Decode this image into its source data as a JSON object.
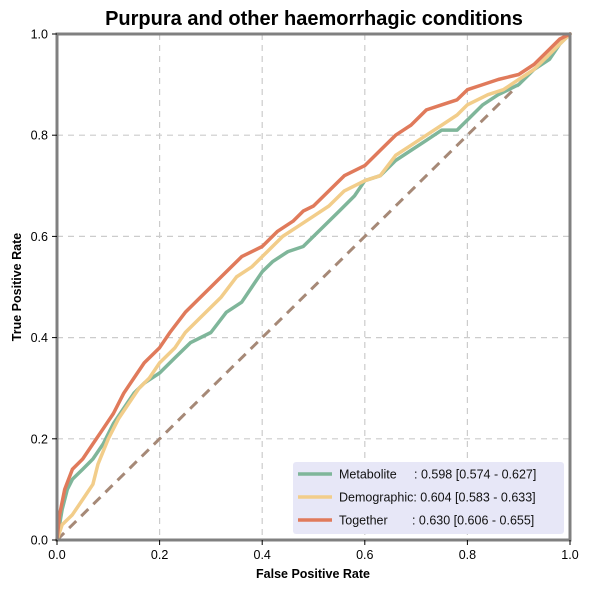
{
  "chart_data": {
    "type": "line",
    "title": "Purpura and other haemorrhagic conditions",
    "xlabel": "False Positive Rate",
    "ylabel": "True Positive Rate",
    "xlim": [
      0,
      1
    ],
    "ylim": [
      0,
      1
    ],
    "xticks": [
      "0.0",
      "0.2",
      "0.4",
      "0.6",
      "0.8",
      "1.0"
    ],
    "yticks": [
      "0.0",
      "0.2",
      "0.4",
      "0.6",
      "0.8",
      "1.0"
    ],
    "grid": true,
    "legend_position": "bottom-right",
    "series": [
      {
        "name": "Metabolite",
        "label": "Metabolite     : 0.598 [0.574 - 0.627]",
        "color": "#7fb69a",
        "x": [
          0,
          0.01,
          0.02,
          0.03,
          0.05,
          0.07,
          0.09,
          0.11,
          0.13,
          0.15,
          0.17,
          0.2,
          0.23,
          0.26,
          0.3,
          0.33,
          0.36,
          0.38,
          0.4,
          0.42,
          0.45,
          0.48,
          0.5,
          0.52,
          0.55,
          0.58,
          0.6,
          0.63,
          0.66,
          0.69,
          0.72,
          0.75,
          0.78,
          0.8,
          0.83,
          0.86,
          0.9,
          0.93,
          0.96,
          0.98,
          1.0
        ],
        "y": [
          0,
          0.06,
          0.1,
          0.12,
          0.14,
          0.16,
          0.19,
          0.23,
          0.26,
          0.29,
          0.31,
          0.33,
          0.36,
          0.39,
          0.41,
          0.45,
          0.47,
          0.5,
          0.53,
          0.55,
          0.57,
          0.58,
          0.6,
          0.62,
          0.65,
          0.68,
          0.71,
          0.72,
          0.75,
          0.77,
          0.79,
          0.81,
          0.81,
          0.83,
          0.86,
          0.88,
          0.9,
          0.93,
          0.95,
          0.98,
          1.0
        ]
      },
      {
        "name": "Demographic",
        "label": "Demographic: 0.604 [0.583 - 0.633]",
        "color": "#f2cd8a",
        "x": [
          0,
          0.01,
          0.03,
          0.05,
          0.07,
          0.08,
          0.1,
          0.12,
          0.14,
          0.16,
          0.18,
          0.2,
          0.23,
          0.25,
          0.28,
          0.3,
          0.32,
          0.35,
          0.38,
          0.41,
          0.44,
          0.47,
          0.5,
          0.53,
          0.56,
          0.6,
          0.63,
          0.66,
          0.69,
          0.72,
          0.75,
          0.78,
          0.8,
          0.84,
          0.87,
          0.9,
          0.93,
          0.96,
          0.98,
          1.0
        ],
        "y": [
          0,
          0.03,
          0.05,
          0.08,
          0.11,
          0.15,
          0.2,
          0.24,
          0.27,
          0.3,
          0.32,
          0.35,
          0.38,
          0.41,
          0.44,
          0.46,
          0.48,
          0.52,
          0.54,
          0.57,
          0.6,
          0.62,
          0.64,
          0.66,
          0.69,
          0.71,
          0.72,
          0.76,
          0.78,
          0.8,
          0.82,
          0.84,
          0.86,
          0.88,
          0.89,
          0.91,
          0.93,
          0.96,
          0.98,
          1.0
        ]
      },
      {
        "name": "Together",
        "label": "Together       : 0.630 [0.606 - 0.655]",
        "color": "#e07a5b",
        "x": [
          0,
          0.005,
          0.015,
          0.03,
          0.05,
          0.07,
          0.09,
          0.11,
          0.13,
          0.15,
          0.17,
          0.2,
          0.22,
          0.25,
          0.28,
          0.3,
          0.33,
          0.36,
          0.4,
          0.43,
          0.46,
          0.48,
          0.5,
          0.53,
          0.56,
          0.6,
          0.63,
          0.66,
          0.69,
          0.72,
          0.75,
          0.78,
          0.8,
          0.83,
          0.86,
          0.9,
          0.93,
          0.96,
          0.98,
          1.0
        ],
        "y": [
          0,
          0.05,
          0.1,
          0.14,
          0.16,
          0.19,
          0.22,
          0.25,
          0.29,
          0.32,
          0.35,
          0.38,
          0.41,
          0.45,
          0.48,
          0.5,
          0.53,
          0.56,
          0.58,
          0.61,
          0.63,
          0.65,
          0.66,
          0.69,
          0.72,
          0.74,
          0.77,
          0.8,
          0.82,
          0.85,
          0.86,
          0.87,
          0.89,
          0.9,
          0.91,
          0.92,
          0.94,
          0.97,
          0.99,
          1.0
        ]
      },
      {
        "name": "",
        "role": "chance-diagonal",
        "color": "#a68977",
        "dashed": true,
        "x": [
          0,
          1
        ],
        "y": [
          0,
          1
        ]
      }
    ]
  },
  "colors": {
    "grid": "#cccccc",
    "frame": "#808080",
    "legend_background": "#e7e7f7"
  }
}
